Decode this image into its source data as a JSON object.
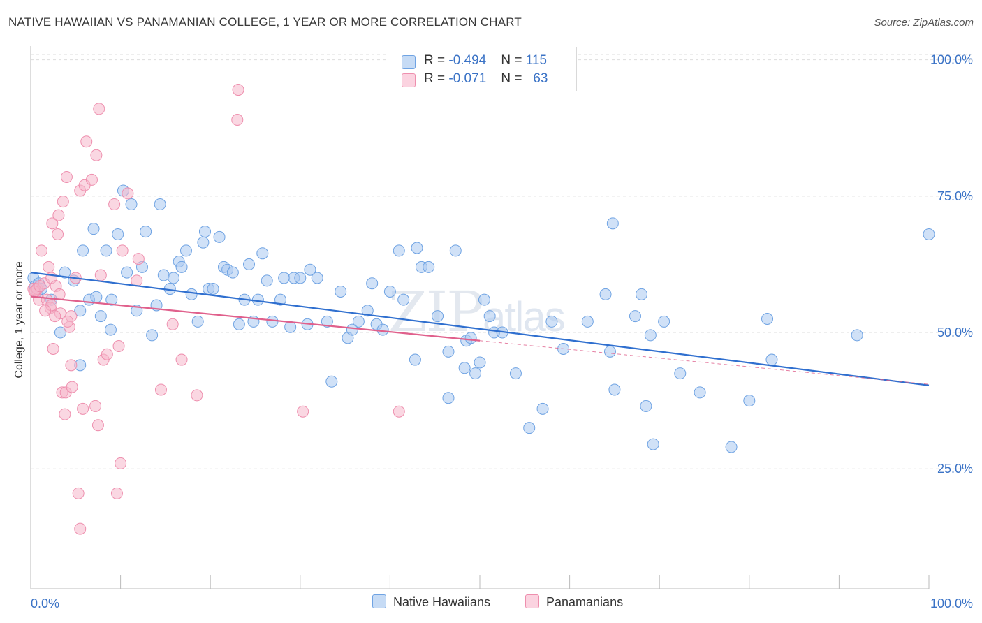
{
  "title": "NATIVE HAWAIIAN VS PANAMANIAN COLLEGE, 1 YEAR OR MORE CORRELATION CHART",
  "source": "Source: ZipAtlas.com",
  "watermark": "ZIPatlas",
  "legend_top": [
    {
      "r_label": "R = ",
      "r_value": "-0.494",
      "n_label": "N = ",
      "n_value": "115",
      "color": "#a9c8f0"
    },
    {
      "r_label": "R = ",
      "r_value": "-0.071",
      "n_label": "N = ",
      "n_value": "63",
      "color": "#f5b7cb"
    }
  ],
  "bottom_legend": [
    {
      "label": "Native Hawaiians",
      "color": "#a9c8f0"
    },
    {
      "label": "Panamanians",
      "color": "#f5b7cb"
    }
  ],
  "chart_data": {
    "type": "scatter",
    "title": "NATIVE HAWAIIAN VS PANAMANIAN COLLEGE, 1 YEAR OR MORE CORRELATION CHART",
    "xlabel": "",
    "ylabel": "College, 1 year or more",
    "xlim": [
      0,
      100
    ],
    "ylim": [
      3,
      102
    ],
    "x_tick_labels": [
      "0.0%",
      "100.0%"
    ],
    "y_ticks": [
      25,
      50,
      75,
      100
    ],
    "y_tick_labels": [
      "25.0%",
      "50.0%",
      "75.0%",
      "100.0%"
    ],
    "grid": true,
    "series": [
      {
        "name": "Native Hawaiians",
        "color": "#6fa3e3",
        "fill": "#a9c8f0",
        "trend": {
          "x": [
            0,
            100
          ],
          "y": [
            61.0,
            40.3
          ],
          "color": "#2f6fcf"
        },
        "points": [
          [
            0.3,
            60.0
          ],
          [
            0.5,
            58.5
          ],
          [
            0.7,
            57.5
          ],
          [
            0.9,
            59.0
          ],
          [
            1.2,
            58.0
          ],
          [
            2.3,
            56.0
          ],
          [
            3.3,
            50.0
          ],
          [
            3.8,
            61.0
          ],
          [
            4.8,
            59.5
          ],
          [
            5.5,
            54.0
          ],
          [
            5.5,
            44.0
          ],
          [
            5.8,
            65.0
          ],
          [
            6.5,
            56.0
          ],
          [
            7.0,
            69.0
          ],
          [
            7.3,
            56.5
          ],
          [
            7.8,
            53.0
          ],
          [
            8.4,
            65.0
          ],
          [
            8.9,
            50.5
          ],
          [
            9.0,
            56.0
          ],
          [
            9.7,
            68.0
          ],
          [
            10.3,
            76.0
          ],
          [
            10.7,
            61.0
          ],
          [
            11.2,
            73.5
          ],
          [
            11.8,
            54.0
          ],
          [
            12.4,
            62.0
          ],
          [
            12.8,
            68.5
          ],
          [
            13.5,
            49.5
          ],
          [
            14.0,
            55.0
          ],
          [
            14.4,
            73.5
          ],
          [
            14.8,
            60.5
          ],
          [
            15.5,
            58.0
          ],
          [
            15.9,
            60.0
          ],
          [
            16.5,
            63.0
          ],
          [
            16.8,
            62.0
          ],
          [
            17.3,
            65.0
          ],
          [
            17.9,
            57.0
          ],
          [
            18.6,
            52.0
          ],
          [
            19.2,
            66.5
          ],
          [
            19.4,
            68.5
          ],
          [
            19.8,
            58.0
          ],
          [
            20.3,
            58.0
          ],
          [
            21.0,
            67.5
          ],
          [
            21.5,
            62.0
          ],
          [
            21.9,
            61.5
          ],
          [
            22.5,
            61.0
          ],
          [
            23.2,
            51.5
          ],
          [
            23.8,
            56.0
          ],
          [
            24.3,
            62.5
          ],
          [
            24.8,
            52.0
          ],
          [
            25.3,
            56.0
          ],
          [
            25.8,
            64.5
          ],
          [
            26.3,
            59.5
          ],
          [
            26.9,
            52.0
          ],
          [
            27.8,
            56.0
          ],
          [
            28.2,
            60.0
          ],
          [
            28.9,
            51.0
          ],
          [
            29.3,
            60.0
          ],
          [
            30.0,
            60.0
          ],
          [
            30.8,
            51.5
          ],
          [
            31.1,
            61.5
          ],
          [
            31.9,
            60.0
          ],
          [
            33.5,
            41.0
          ],
          [
            33.0,
            52.0
          ],
          [
            34.5,
            57.5
          ],
          [
            35.3,
            49.0
          ],
          [
            35.8,
            50.5
          ],
          [
            36.5,
            52.0
          ],
          [
            37.5,
            54.0
          ],
          [
            38.0,
            59.0
          ],
          [
            38.5,
            51.5
          ],
          [
            39.2,
            50.5
          ],
          [
            40.0,
            57.5
          ],
          [
            41.0,
            65.0
          ],
          [
            41.5,
            56.0
          ],
          [
            42.8,
            45.0
          ],
          [
            43.0,
            65.5
          ],
          [
            43.5,
            62.0
          ],
          [
            44.3,
            62.0
          ],
          [
            45.3,
            53.0
          ],
          [
            46.5,
            46.5
          ],
          [
            46.5,
            38.0
          ],
          [
            47.3,
            65.0
          ],
          [
            48.3,
            43.5
          ],
          [
            48.5,
            48.5
          ],
          [
            49.0,
            49.0
          ],
          [
            49.5,
            42.5
          ],
          [
            50.0,
            44.5
          ],
          [
            50.5,
            56.0
          ],
          [
            51.1,
            53.0
          ],
          [
            51.6,
            50.0
          ],
          [
            52.5,
            50.0
          ],
          [
            54.0,
            42.5
          ],
          [
            55.5,
            32.5
          ],
          [
            57.0,
            36.0
          ],
          [
            58.0,
            52.0
          ],
          [
            59.3,
            47.0
          ],
          [
            62.0,
            52.0
          ],
          [
            64.0,
            57.0
          ],
          [
            64.5,
            46.5
          ],
          [
            64.8,
            70.0
          ],
          [
            65.0,
            39.5
          ],
          [
            67.3,
            53.0
          ],
          [
            68.0,
            57.0
          ],
          [
            68.5,
            36.5
          ],
          [
            69.0,
            49.5
          ],
          [
            69.3,
            29.5
          ],
          [
            70.5,
            52.0
          ],
          [
            72.3,
            42.5
          ],
          [
            74.5,
            39.0
          ],
          [
            78.0,
            29.0
          ],
          [
            80.0,
            37.5
          ],
          [
            82.0,
            52.5
          ],
          [
            82.5,
            45.0
          ],
          [
            92.0,
            49.5
          ],
          [
            100.0,
            68.0
          ]
        ]
      },
      {
        "name": "Panamanians",
        "color": "#ee8fae",
        "fill": "#f5b7cb",
        "trend": {
          "x": [
            0,
            50
          ],
          "y": [
            56.6,
            48.5
          ],
          "color": "#e0608c"
        },
        "trend_dashed": {
          "x": [
            50,
            100
          ],
          "y": [
            48.5,
            40.5
          ]
        },
        "points": [
          [
            0.3,
            58.0
          ],
          [
            0.5,
            57.5
          ],
          [
            0.7,
            58.0
          ],
          [
            0.9,
            56.0
          ],
          [
            1.2,
            65.0
          ],
          [
            1.5,
            59.0
          ],
          [
            1.8,
            56.0
          ],
          [
            2.0,
            62.0
          ],
          [
            2.2,
            54.5
          ],
          [
            2.3,
            60.0
          ],
          [
            2.3,
            55.0
          ],
          [
            2.4,
            70.0
          ],
          [
            2.5,
            47.0
          ],
          [
            2.8,
            58.5
          ],
          [
            3.0,
            68.0
          ],
          [
            3.1,
            71.5
          ],
          [
            3.3,
            53.5
          ],
          [
            3.5,
            39.0
          ],
          [
            3.6,
            74.0
          ],
          [
            3.8,
            35.0
          ],
          [
            3.9,
            39.0
          ],
          [
            4.0,
            78.5
          ],
          [
            4.3,
            51.0
          ],
          [
            4.5,
            53.0
          ],
          [
            4.5,
            44.0
          ],
          [
            4.6,
            40.0
          ],
          [
            5.3,
            20.5
          ],
          [
            5.5,
            14.0
          ],
          [
            5.5,
            76.0
          ],
          [
            5.8,
            36.0
          ],
          [
            6.0,
            77.0
          ],
          [
            6.2,
            85.0
          ],
          [
            6.8,
            78.0
          ],
          [
            7.2,
            36.5
          ],
          [
            7.3,
            82.5
          ],
          [
            7.5,
            33.0
          ],
          [
            7.6,
            91.0
          ],
          [
            7.8,
            60.5
          ],
          [
            8.1,
            45.0
          ],
          [
            8.5,
            46.0
          ],
          [
            9.3,
            73.5
          ],
          [
            9.6,
            20.5
          ],
          [
            9.8,
            47.5
          ],
          [
            10.0,
            26.0
          ],
          [
            10.2,
            65.0
          ],
          [
            10.8,
            75.5
          ],
          [
            11.8,
            59.5
          ],
          [
            12.0,
            63.5
          ],
          [
            14.5,
            39.5
          ],
          [
            15.8,
            51.5
          ],
          [
            16.8,
            45.0
          ],
          [
            18.5,
            38.5
          ],
          [
            23.0,
            89.0
          ],
          [
            23.1,
            94.5
          ],
          [
            30.3,
            35.5
          ],
          [
            41.0,
            35.5
          ],
          [
            0.4,
            57.5
          ],
          [
            1.0,
            58.5
          ],
          [
            1.6,
            54.0
          ],
          [
            2.7,
            53.0
          ],
          [
            3.2,
            57.0
          ],
          [
            4.1,
            52.0
          ],
          [
            5.0,
            60.0
          ]
        ]
      }
    ]
  }
}
